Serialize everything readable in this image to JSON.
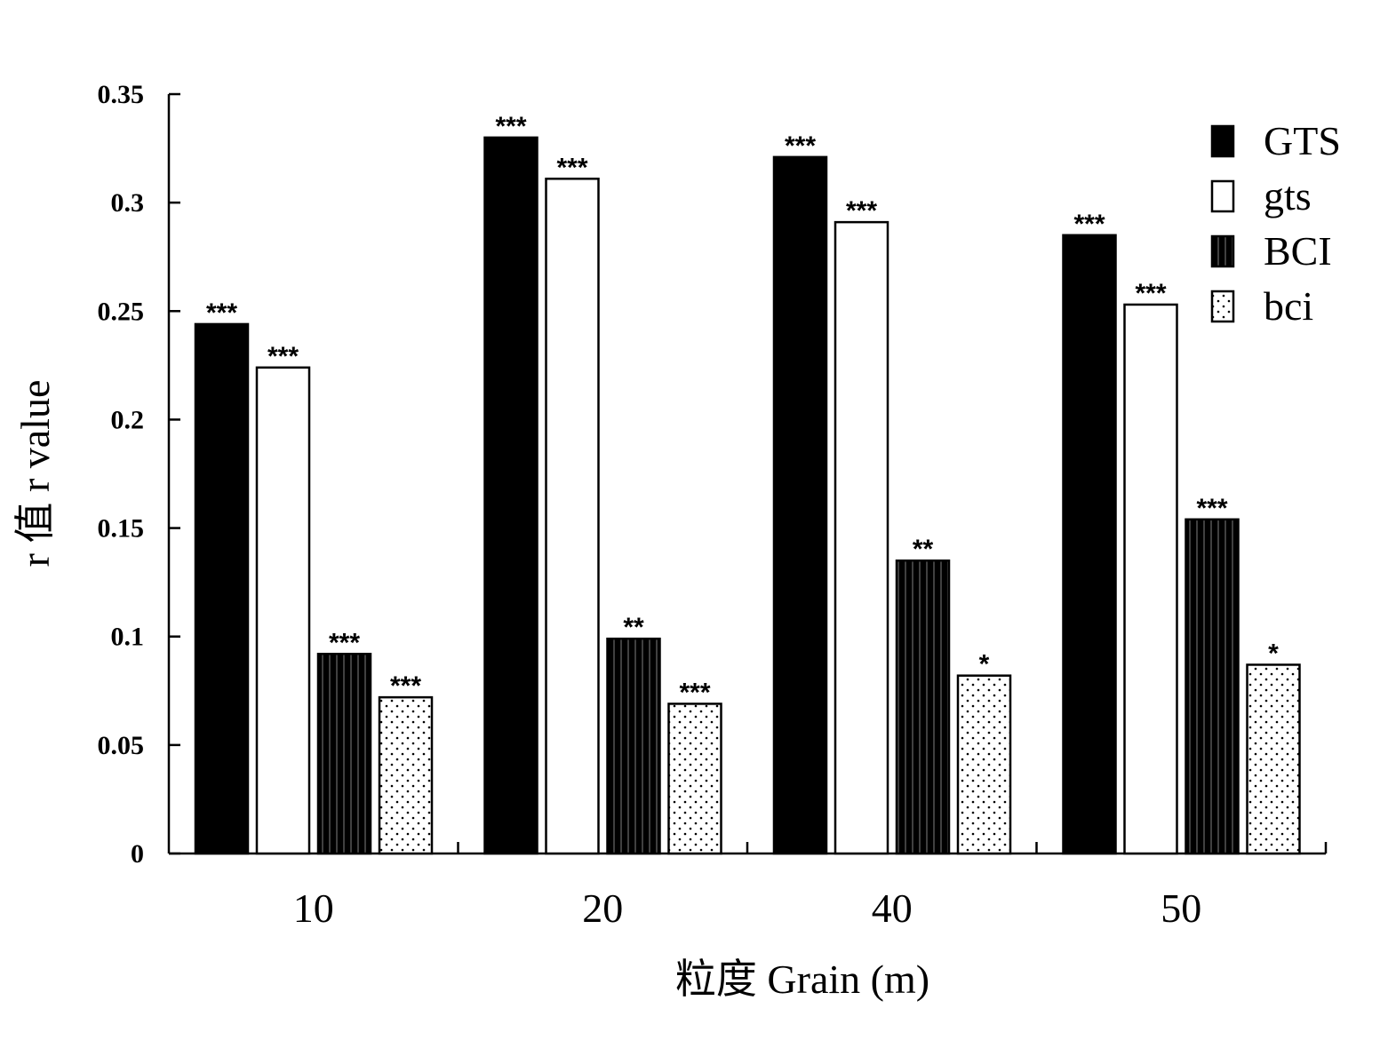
{
  "chart_data": {
    "type": "bar",
    "xlabel": "粒度 Grain (m)",
    "ylabel": "r 值 r value",
    "ylim": [
      0,
      0.35
    ],
    "yticks": [
      0,
      0.05,
      0.1,
      0.15,
      0.2,
      0.25,
      0.3,
      0.35
    ],
    "ytick_labels": [
      "0",
      "0.05",
      "0.1",
      "0.15",
      "0.2",
      "0.25",
      "0.3",
      "0.35"
    ],
    "categories": [
      "10",
      "20",
      "40",
      "50"
    ],
    "legend_position": "top-right",
    "series": [
      {
        "name": "GTS",
        "fill": "solid-black",
        "values": [
          0.244,
          0.33,
          0.321,
          0.285
        ],
        "significance": [
          "***",
          "***",
          "***",
          "***"
        ]
      },
      {
        "name": "gts",
        "fill": "white",
        "values": [
          0.224,
          0.311,
          0.291,
          0.253
        ],
        "significance": [
          "***",
          "***",
          "***",
          "***"
        ]
      },
      {
        "name": "BCI",
        "fill": "black-vertical-stripes",
        "values": [
          0.092,
          0.099,
          0.135,
          0.154
        ],
        "significance": [
          "***",
          "**",
          "**",
          "***"
        ]
      },
      {
        "name": "bci",
        "fill": "dotted",
        "values": [
          0.072,
          0.069,
          0.082,
          0.087
        ],
        "significance": [
          "***",
          "***",
          "*",
          "*"
        ]
      }
    ],
    "colors": {
      "dark": "#000000",
      "light": "#ffffff"
    }
  }
}
